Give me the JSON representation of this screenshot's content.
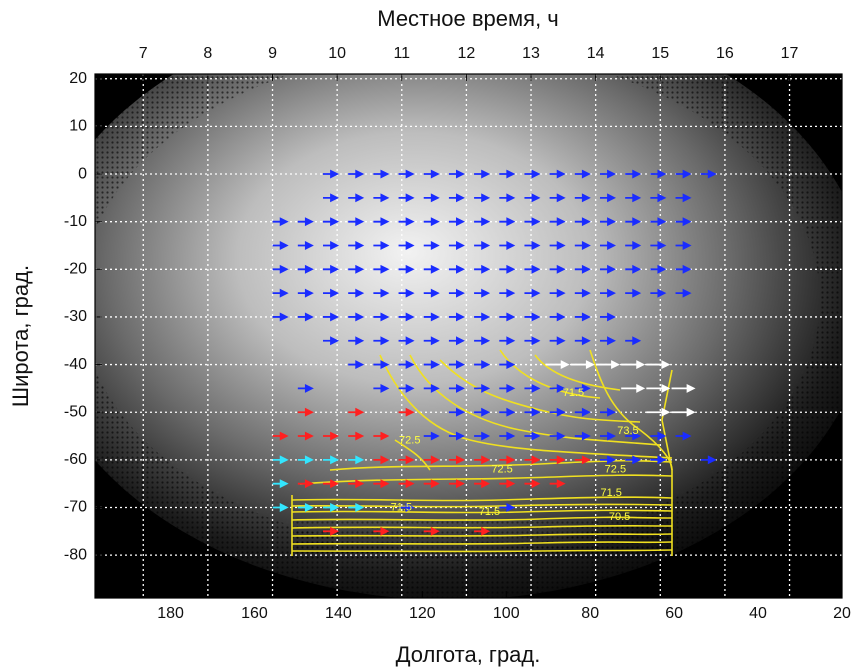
{
  "chart_data": {
    "type": "quiver",
    "xlabel": "Долгота, град.",
    "x2label": "Местное время, ч",
    "ylabel": "Широта, град.",
    "xlim": [
      198,
      20
    ],
    "ylim": [
      -89,
      21
    ],
    "xticks": [
      180,
      160,
      140,
      120,
      100,
      80,
      60,
      40,
      20
    ],
    "x2ticks": [
      {
        "value": 186.5,
        "label": "7"
      },
      {
        "value": 171.1,
        "label": "8"
      },
      {
        "value": 155.7,
        "label": "9"
      },
      {
        "value": 140.3,
        "label": "10"
      },
      {
        "value": 124.9,
        "label": "11"
      },
      {
        "value": 109.5,
        "label": "12"
      },
      {
        "value": 94.1,
        "label": "13"
      },
      {
        "value": 78.7,
        "label": "14"
      },
      {
        "value": 63.3,
        "label": "15"
      },
      {
        "value": 47.9,
        "label": "16"
      },
      {
        "value": 32.5,
        "label": "17"
      }
    ],
    "yticks": [
      20,
      10,
      0,
      -10,
      -20,
      -30,
      -40,
      -50,
      -60,
      -70,
      -80
    ],
    "grid": true,
    "vectors": [
      {
        "color": "#1a2cff",
        "y": 0,
        "x": [
          142,
          136,
          130,
          124,
          118,
          112,
          106,
          100,
          94,
          88,
          82,
          76,
          70,
          64,
          58,
          52
        ]
      },
      {
        "color": "#1a2cff",
        "y": -5,
        "x": [
          142,
          136,
          130,
          124,
          118,
          112,
          106,
          100,
          94,
          88,
          82,
          76,
          70,
          64,
          58
        ]
      },
      {
        "color": "#1a2cff",
        "y": -10,
        "x": [
          154,
          148,
          142,
          136,
          130,
          124,
          118,
          112,
          106,
          100,
          94,
          88,
          82,
          76,
          70,
          64,
          58
        ]
      },
      {
        "color": "#1a2cff",
        "y": -15,
        "x": [
          154,
          148,
          142,
          136,
          130,
          124,
          118,
          112,
          106,
          100,
          94,
          88,
          82,
          76,
          70,
          64,
          58
        ]
      },
      {
        "color": "#1a2cff",
        "y": -20,
        "x": [
          154,
          148,
          142,
          136,
          130,
          124,
          118,
          112,
          106,
          100,
          94,
          88,
          82,
          76,
          70,
          64,
          58
        ]
      },
      {
        "color": "#1a2cff",
        "y": -25,
        "x": [
          154,
          148,
          142,
          136,
          130,
          124,
          118,
          112,
          106,
          100,
          94,
          88,
          82,
          76,
          70,
          64,
          58
        ]
      },
      {
        "color": "#1a2cff",
        "y": -30,
        "x": [
          154,
          148,
          142,
          136,
          130,
          124,
          118,
          112,
          106,
          100,
          94,
          88,
          82,
          76
        ]
      },
      {
        "color": "#1a2cff",
        "y": -35,
        "x": [
          142,
          136,
          130,
          124,
          118,
          112,
          106,
          100,
          94,
          88,
          82,
          76,
          70
        ]
      },
      {
        "color": "#1a2cff",
        "y": -40,
        "x": [
          136,
          130,
          124,
          118,
          112,
          106,
          100
        ]
      },
      {
        "color": "#ffffff",
        "y": -40,
        "x": [
          88,
          82,
          76,
          70,
          64
        ]
      },
      {
        "color": "#1a2cff",
        "y": -45,
        "x": [
          148,
          130,
          124,
          118,
          112,
          106,
          100,
          94,
          88,
          82
        ]
      },
      {
        "color": "#ffffff",
        "y": -45,
        "x": [
          70,
          64,
          58
        ]
      },
      {
        "color": "#ff2020",
        "y": -50,
        "x": [
          148,
          136,
          124
        ]
      },
      {
        "color": "#1a2cff",
        "y": -50,
        "x": [
          112,
          106,
          100,
          94,
          88,
          82,
          76
        ]
      },
      {
        "color": "#ffffff",
        "y": -50,
        "x": [
          64,
          58
        ]
      },
      {
        "color": "#ff2020",
        "y": -55,
        "x": [
          154,
          148,
          142,
          136,
          130
        ]
      },
      {
        "color": "#1a2cff",
        "y": -55,
        "x": [
          118,
          112,
          106,
          100,
          94,
          88,
          82,
          76,
          70,
          64,
          58
        ]
      },
      {
        "color": "#33e6ff",
        "y": -60,
        "x": [
          154,
          148,
          142,
          136
        ]
      },
      {
        "color": "#ff2020",
        "y": -60,
        "x": [
          130,
          124,
          118,
          112,
          106,
          100,
          94,
          88,
          82
        ]
      },
      {
        "color": "#1a2cff",
        "y": -60,
        "x": [
          76,
          70,
          64,
          52
        ]
      },
      {
        "color": "#33e6ff",
        "y": -65,
        "x": [
          154
        ]
      },
      {
        "color": "#ff2020",
        "y": -65,
        "x": [
          148,
          142,
          136,
          130,
          124,
          118,
          112,
          106,
          100,
          94,
          88
        ]
      },
      {
        "color": "#33e6ff",
        "y": -70,
        "x": [
          154,
          148,
          142,
          136
        ]
      },
      {
        "color": "#1a2cff",
        "y": -70,
        "x": [
          124,
          100
        ]
      },
      {
        "color": "#ff2020",
        "y": -75,
        "x": [
          142,
          130,
          118,
          106
        ]
      }
    ],
    "contour_labels": [
      {
        "value": 71.5,
        "x": 84,
        "y": -46
      },
      {
        "value": 73.5,
        "x": 71,
        "y": -54
      },
      {
        "value": 72.5,
        "x": 123,
        "y": -56
      },
      {
        "value": 72.5,
        "x": 101,
        "y": -62
      },
      {
        "value": 72.5,
        "x": 74,
        "y": -62
      },
      {
        "value": 71.5,
        "x": 125,
        "y": -70
      },
      {
        "value": 71.5,
        "x": 104,
        "y": -71
      },
      {
        "value": 71.5,
        "x": 75,
        "y": -67
      },
      {
        "value": 70.5,
        "x": 73,
        "y": -72
      }
    ]
  }
}
